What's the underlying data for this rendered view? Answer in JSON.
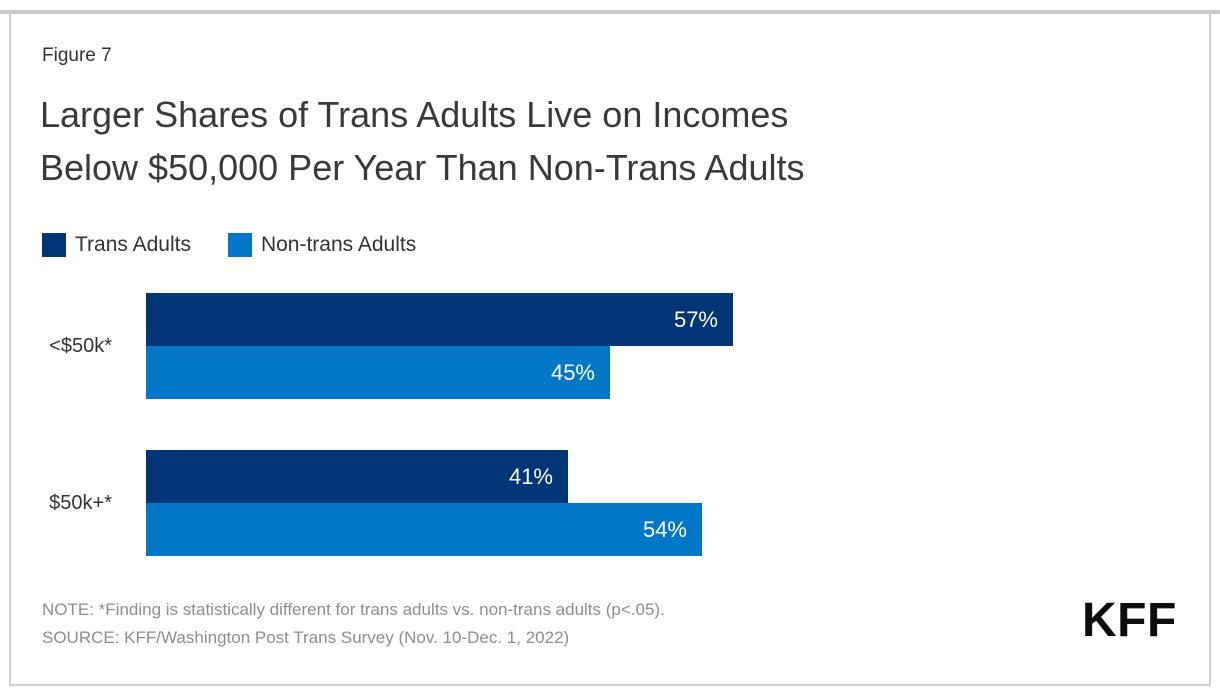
{
  "page": {
    "figure_label": "Figure 7",
    "title_lines": [
      "Larger Shares of Trans Adults Live on Incomes",
      "Below $50,000 Per Year Than Non-Trans Adults"
    ]
  },
  "legend": {
    "items": [
      {
        "label": "Trans Adults"
      },
      {
        "label": "Non-trans Adults"
      }
    ]
  },
  "chart_data": {
    "type": "bar",
    "orientation": "horizontal",
    "title": "Larger Shares of Trans Adults Live on Incomes Below $50,000 Per Year Than Non-Trans Adults",
    "categories": [
      "<$50k*",
      "$50k+*"
    ],
    "series": [
      {
        "name": "Trans Adults",
        "color": "#003576",
        "values": [
          57,
          41
        ],
        "labels": [
          "57%",
          "41%"
        ]
      },
      {
        "name": "Non-trans Adults",
        "color": "#0277C8",
        "values": [
          45,
          54
        ],
        "labels": [
          "45%",
          "54%"
        ]
      }
    ],
    "value_unit": "percent",
    "xlim": [
      0,
      100
    ],
    "grid": false,
    "value_labels_position": "inside-end",
    "legend_position": "top-left"
  },
  "notes": {
    "note": "NOTE: *Finding is statistically different for trans adults vs. non-trans adults (p<.05).",
    "source": "SOURCE: KFF/Washington Post Trans Survey (Nov. 10-Dec. 1, 2022)"
  },
  "branding": {
    "logo_text": "KFF"
  }
}
